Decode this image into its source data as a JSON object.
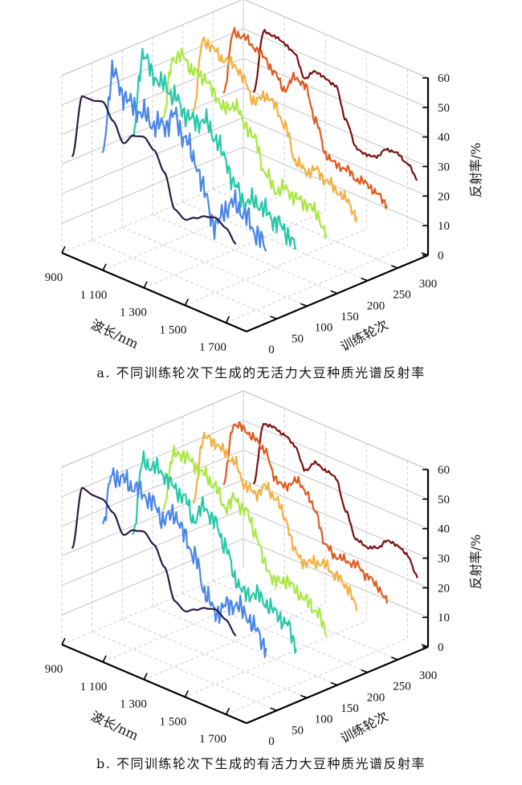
{
  "chart_data": [
    {
      "type": "line",
      "subtype": "3d-waterfall",
      "title": "a. 不同训练轮次下生成的无活力大豆种质光谱反射率",
      "xlabel": "波长/nm",
      "ylabel": "训练轮次",
      "zlabel": "反射率/%",
      "xlim": [
        900,
        1800
      ],
      "ylim": [
        0,
        300
      ],
      "zlim": [
        0,
        60
      ],
      "xticks": [
        "900",
        "1 100",
        "1 300",
        "1 500",
        "1 700"
      ],
      "xtick_values": [
        900,
        1100,
        1300,
        1500,
        1700
      ],
      "yticks": [
        "0",
        "50",
        "100",
        "150",
        "200",
        "250",
        "300"
      ],
      "ytick_values": [
        0,
        50,
        100,
        150,
        200,
        250,
        300
      ],
      "zticks": [
        "0",
        "10",
        "20",
        "30",
        "40",
        "50",
        "60"
      ],
      "ztick_values": [
        0,
        10,
        20,
        30,
        40,
        50,
        60
      ],
      "grid": true,
      "wavelengths": [
        950,
        1000,
        1050,
        1100,
        1150,
        1200,
        1250,
        1300,
        1350,
        1400,
        1450,
        1500,
        1550,
        1600,
        1650,
        1700,
        1750
      ],
      "series": [
        {
          "epoch": 0,
          "color": "#2b1b46",
          "noise": 0,
          "values": [
            34,
            56,
            56,
            57,
            52,
            46,
            50,
            51,
            48,
            42,
            31,
            29,
            31,
            33,
            34,
            32,
            28
          ]
        },
        {
          "epoch": 50,
          "color": "#4a86e8",
          "noise": 4,
          "values": [
            31,
            60,
            54,
            51,
            50,
            48,
            49,
            54,
            48,
            42,
            32,
            22,
            30,
            33,
            30,
            26,
            22
          ]
        },
        {
          "epoch": 100,
          "color": "#26c8a8",
          "noise": 3.5,
          "values": [
            32,
            62,
            56,
            54,
            52,
            48,
            46,
            48,
            44,
            38,
            30,
            26,
            28,
            26,
            24,
            22,
            18
          ]
        },
        {
          "epoch": 150,
          "color": "#a8e840",
          "noise": 2.5,
          "values": [
            34,
            56,
            58,
            54,
            54,
            50,
            46,
            49,
            44,
            40,
            30,
            26,
            28,
            26,
            26,
            24,
            18
          ]
        },
        {
          "epoch": 200,
          "color": "#f4b040",
          "noise": 2,
          "values": [
            32,
            58,
            56,
            54,
            54,
            50,
            44,
            48,
            46,
            40,
            30,
            28,
            30,
            28,
            26,
            24,
            20
          ]
        },
        {
          "epoch": 250,
          "color": "#e05a20",
          "noise": 1.5,
          "values": [
            34,
            56,
            56,
            54,
            52,
            48,
            44,
            50,
            48,
            38,
            28,
            26,
            26,
            24,
            24,
            22,
            20
          ]
        },
        {
          "epoch": 300,
          "color": "#7a1010",
          "noise": 0.5,
          "values": [
            30,
            52,
            52,
            51,
            49,
            42,
            46,
            45,
            44,
            34,
            26,
            25,
            26,
            30,
            30,
            28,
            24
          ]
        }
      ]
    },
    {
      "type": "line",
      "subtype": "3d-waterfall",
      "title": "b. 不同训练轮次下生成的有活力大豆种质光谱反射率",
      "xlabel": "波长/nm",
      "ylabel": "训练轮次",
      "zlabel": "反射率/%",
      "xlim": [
        900,
        1800
      ],
      "ylim": [
        0,
        300
      ],
      "zlim": [
        0,
        60
      ],
      "xticks": [
        "900",
        "1 100",
        "1 300",
        "1 500",
        "1 700"
      ],
      "xtick_values": [
        900,
        1100,
        1300,
        1500,
        1700
      ],
      "yticks": [
        "0",
        "50",
        "100",
        "150",
        "200",
        "250",
        "300"
      ],
      "ytick_values": [
        0,
        50,
        100,
        150,
        200,
        250,
        300
      ],
      "zticks": [
        "0",
        "10",
        "20",
        "30",
        "40",
        "50",
        "60"
      ],
      "ztick_values": [
        0,
        10,
        20,
        30,
        40,
        50,
        60
      ],
      "grid": true,
      "wavelengths": [
        950,
        1000,
        1050,
        1100,
        1150,
        1200,
        1250,
        1300,
        1350,
        1400,
        1450,
        1500,
        1550,
        1600,
        1650,
        1700,
        1750
      ],
      "series": [
        {
          "epoch": 0,
          "color": "#2b1b46",
          "noise": 0,
          "values": [
            34,
            56,
            55,
            55,
            52,
            46,
            49,
            50,
            47,
            41,
            31,
            29,
            31,
            33,
            34,
            32,
            28
          ]
        },
        {
          "epoch": 50,
          "color": "#4a86e8",
          "noise": 3.5,
          "values": [
            38,
            56,
            56,
            55,
            54,
            52,
            48,
            52,
            46,
            40,
            30,
            24,
            28,
            30,
            28,
            24,
            20
          ]
        },
        {
          "epoch": 100,
          "color": "#26c8a8",
          "noise": 3,
          "values": [
            30,
            56,
            56,
            55,
            52,
            50,
            44,
            50,
            46,
            40,
            30,
            26,
            28,
            26,
            24,
            22,
            16
          ]
        },
        {
          "epoch": 150,
          "color": "#a8e840",
          "noise": 2.5,
          "values": [
            34,
            54,
            56,
            54,
            52,
            50,
            44,
            48,
            46,
            40,
            30,
            26,
            28,
            26,
            24,
            22,
            16
          ]
        },
        {
          "epoch": 200,
          "color": "#f4b040",
          "noise": 2,
          "values": [
            32,
            56,
            56,
            54,
            52,
            46,
            44,
            48,
            46,
            40,
            30,
            28,
            30,
            30,
            28,
            26,
            20
          ]
        },
        {
          "epoch": 250,
          "color": "#e05a20",
          "noise": 1.5,
          "values": [
            34,
            56,
            56,
            54,
            52,
            44,
            42,
            46,
            44,
            38,
            28,
            26,
            26,
            26,
            24,
            22,
            18
          ]
        },
        {
          "epoch": 300,
          "color": "#7a1010",
          "noise": 0.5,
          "values": [
            30,
            52,
            52,
            51,
            49,
            42,
            46,
            45,
            44,
            34,
            26,
            25,
            26,
            30,
            30,
            28,
            22
          ]
        }
      ]
    }
  ]
}
